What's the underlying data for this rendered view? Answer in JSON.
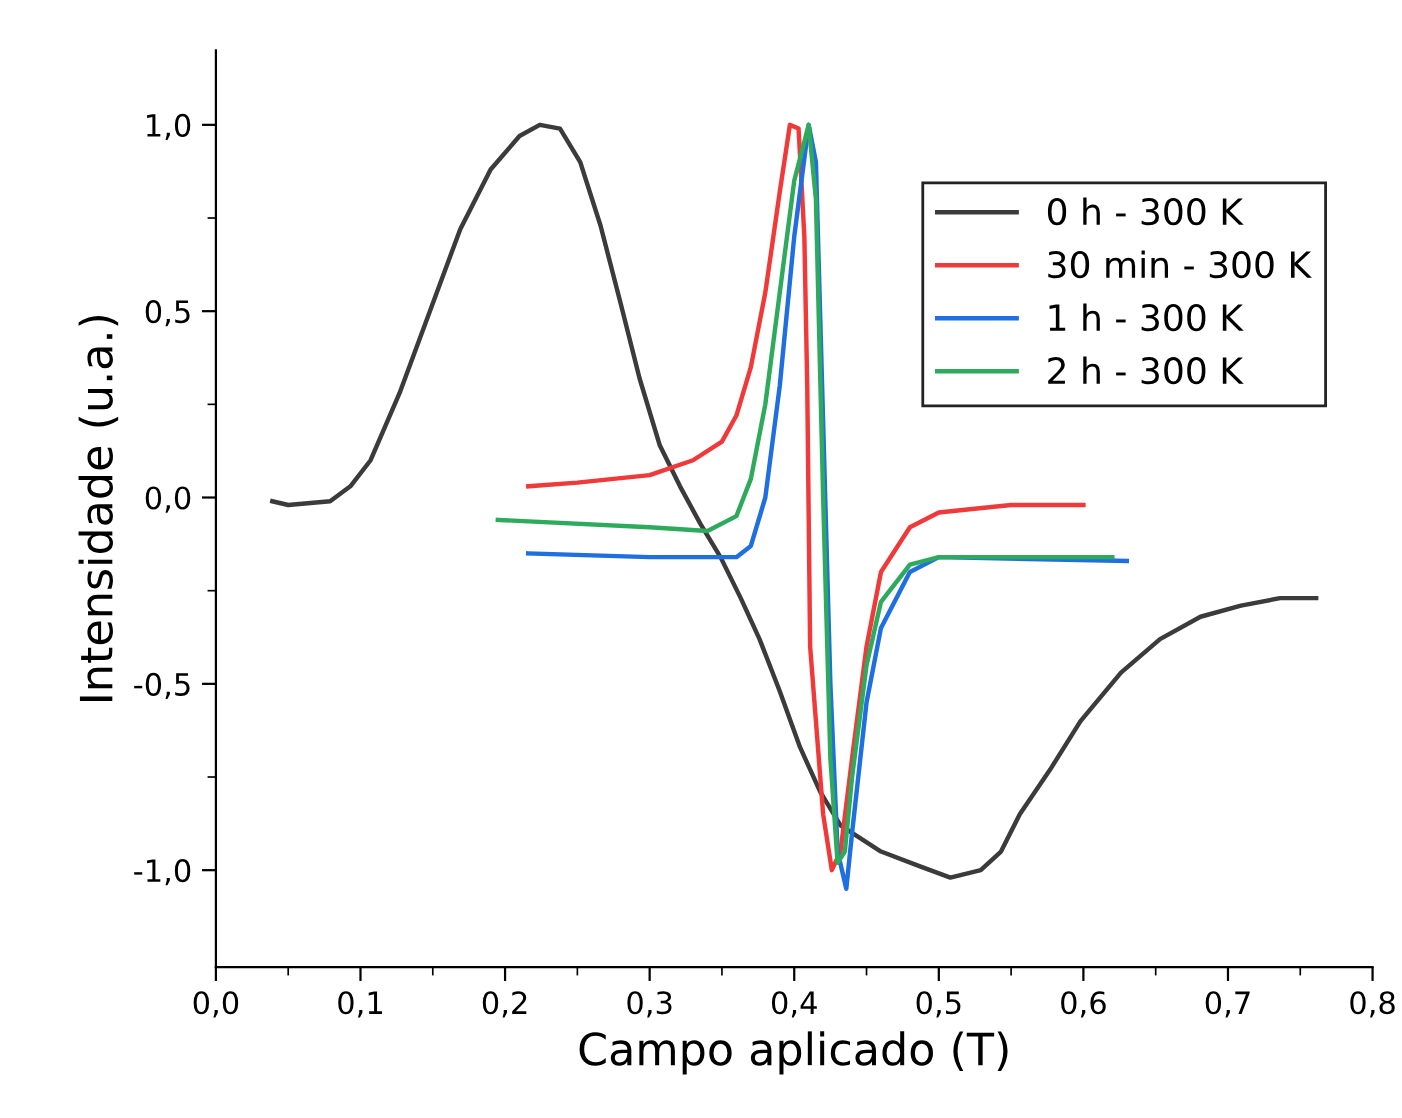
{
  "chart_data": {
    "type": "line",
    "xlabel": "Campo aplicado (T)",
    "ylabel": "Intensidade (u.a.)",
    "xlim": [
      0,
      0.8
    ],
    "ylim": [
      -1.26,
      1.2
    ],
    "xticks": [
      {
        "value": 0,
        "label": "0,0"
      },
      {
        "value": 0.1,
        "label": "0,1"
      },
      {
        "value": 0.2,
        "label": "0,2"
      },
      {
        "value": 0.3,
        "label": "0,3"
      },
      {
        "value": 0.4,
        "label": "0,4"
      },
      {
        "value": 0.5,
        "label": "0,5"
      },
      {
        "value": 0.6,
        "label": "0,6"
      },
      {
        "value": 0.7,
        "label": "0,7"
      },
      {
        "value": 0.8,
        "label": "0,8"
      }
    ],
    "yticks": [
      {
        "value": -1,
        "label": "-1,0"
      },
      {
        "value": -0.5,
        "label": "-0,5"
      },
      {
        "value": 0,
        "label": "0,0"
      },
      {
        "value": 0.5,
        "label": "0,5"
      },
      {
        "value": 1,
        "label": "1,0"
      }
    ],
    "legend": "top right",
    "grid": false,
    "marker": "none",
    "line_style": "solid",
    "series": [
      {
        "name": "0 h - 300 K",
        "color": "#3b3b3b",
        "x": [
          0.039,
          0.05,
          0.079,
          0.093,
          0.107,
          0.127,
          0.148,
          0.169,
          0.19,
          0.21,
          0.224,
          0.238,
          0.252,
          0.266,
          0.28,
          0.293,
          0.307,
          0.321,
          0.335,
          0.349,
          0.363,
          0.376,
          0.39,
          0.404,
          0.418,
          0.432,
          0.46,
          0.487,
          0.508,
          0.529,
          0.543,
          0.556,
          0.577,
          0.598,
          0.626,
          0.653,
          0.681,
          0.709,
          0.736,
          0.761
        ],
        "values": [
          -0.01,
          -0.02,
          -0.01,
          0.03,
          0.1,
          0.28,
          0.5,
          0.72,
          0.88,
          0.97,
          1.0,
          0.99,
          0.9,
          0.73,
          0.52,
          0.32,
          0.14,
          0.03,
          -0.07,
          -0.16,
          -0.27,
          -0.38,
          -0.52,
          -0.67,
          -0.79,
          -0.88,
          -0.95,
          -0.99,
          -1.02,
          -1.0,
          -0.95,
          -0.85,
          -0.73,
          -0.6,
          -0.47,
          -0.38,
          -0.32,
          -0.29,
          -0.27,
          -0.27
        ]
      },
      {
        "name": "30 min - 300 K",
        "color": "#f03a3a",
        "x": [
          0.216,
          0.25,
          0.3,
          0.33,
          0.35,
          0.36,
          0.37,
          0.38,
          0.39,
          0.397,
          0.403,
          0.407,
          0.409,
          0.411,
          0.415,
          0.42,
          0.426,
          0.432,
          0.44,
          0.45,
          0.46,
          0.48,
          0.5,
          0.55,
          0.6
        ],
        "values": [
          0.03,
          0.04,
          0.06,
          0.1,
          0.15,
          0.22,
          0.35,
          0.55,
          0.82,
          1.0,
          0.99,
          0.7,
          0.3,
          -0.4,
          -0.6,
          -0.85,
          -1.0,
          -0.95,
          -0.7,
          -0.4,
          -0.2,
          -0.08,
          -0.04,
          -0.02,
          -0.02
        ]
      },
      {
        "name": "1 h - 300 K",
        "color": "#1f6fe0",
        "x": [
          0.216,
          0.3,
          0.36,
          0.37,
          0.38,
          0.39,
          0.4,
          0.41,
          0.415,
          0.42,
          0.425,
          0.43,
          0.436,
          0.44,
          0.45,
          0.46,
          0.48,
          0.5,
          0.63
        ],
        "values": [
          -0.15,
          -0.16,
          -0.16,
          -0.13,
          0.0,
          0.3,
          0.7,
          1.0,
          0.9,
          0.2,
          -0.5,
          -0.95,
          -1.05,
          -0.9,
          -0.55,
          -0.35,
          -0.2,
          -0.16,
          -0.17
        ]
      },
      {
        "name": "2 h - 300 K",
        "color": "#2eaa5c",
        "x": [
          0.195,
          0.3,
          0.34,
          0.36,
          0.37,
          0.38,
          0.39,
          0.4,
          0.41,
          0.415,
          0.42,
          0.425,
          0.43,
          0.435,
          0.44,
          0.45,
          0.46,
          0.48,
          0.5,
          0.62
        ],
        "values": [
          -0.06,
          -0.08,
          -0.09,
          -0.05,
          0.05,
          0.25,
          0.55,
          0.85,
          1.0,
          0.8,
          0.0,
          -0.7,
          -0.98,
          -0.95,
          -0.75,
          -0.45,
          -0.28,
          -0.18,
          -0.16,
          -0.16
        ]
      }
    ]
  }
}
